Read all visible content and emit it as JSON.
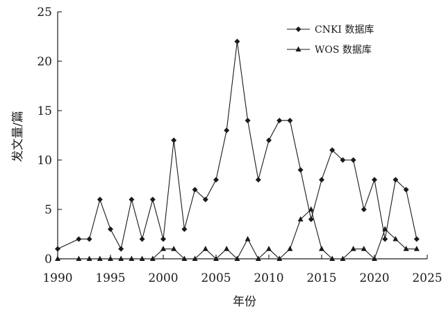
{
  "chart_data": {
    "type": "line",
    "xlabel": "年份",
    "ylabel": "发文量/篇",
    "xlim": [
      1990,
      2025
    ],
    "ylim": [
      0,
      25
    ],
    "xticks": [
      1990,
      1995,
      2000,
      2005,
      2010,
      2015,
      2020,
      2025
    ],
    "yticks": [
      0,
      5,
      10,
      15,
      20,
      25
    ],
    "xtick_labels": [
      "1990",
      "1995",
      "2000",
      "2005",
      "2010",
      "2015",
      "2020",
      "2025"
    ],
    "ytick_labels": [
      "0",
      "5",
      "10",
      "15",
      "20",
      "25"
    ],
    "grid": false,
    "legend_position": "top-right",
    "series": [
      {
        "name": "CNKI 数据库",
        "marker": "diamond",
        "x": [
          1990,
          1992,
          1993,
          1994,
          1995,
          1996,
          1997,
          1998,
          1999,
          2000,
          2001,
          2002,
          2003,
          2004,
          2005,
          2006,
          2007,
          2008,
          2009,
          2010,
          2011,
          2012,
          2013,
          2014,
          2015,
          2016,
          2017,
          2018,
          2019,
          2020,
          2021,
          2022,
          2023,
          2024
        ],
        "y": [
          1,
          2,
          2,
          6,
          3,
          1,
          6,
          2,
          6,
          2,
          12,
          3,
          7,
          6,
          8,
          13,
          22,
          14,
          8,
          12,
          14,
          14,
          9,
          4,
          8,
          11,
          10,
          10,
          5,
          8,
          2,
          8,
          7,
          2
        ]
      },
      {
        "name": "WOS 数据库",
        "marker": "triangle",
        "x": [
          1990,
          1992,
          1993,
          1994,
          1995,
          1996,
          1997,
          1998,
          1999,
          2000,
          2001,
          2002,
          2003,
          2004,
          2005,
          2006,
          2007,
          2008,
          2009,
          2010,
          2011,
          2012,
          2013,
          2014,
          2015,
          2016,
          2017,
          2018,
          2019,
          2020,
          2021,
          2022,
          2023,
          2024
        ],
        "y": [
          0,
          0,
          0,
          0,
          0,
          0,
          0,
          0,
          0,
          1,
          1,
          0,
          0,
          1,
          0,
          1,
          0,
          2,
          0,
          1,
          0,
          1,
          4,
          5,
          1,
          0,
          0,
          1,
          1,
          0,
          3,
          2,
          1,
          1
        ]
      }
    ]
  }
}
